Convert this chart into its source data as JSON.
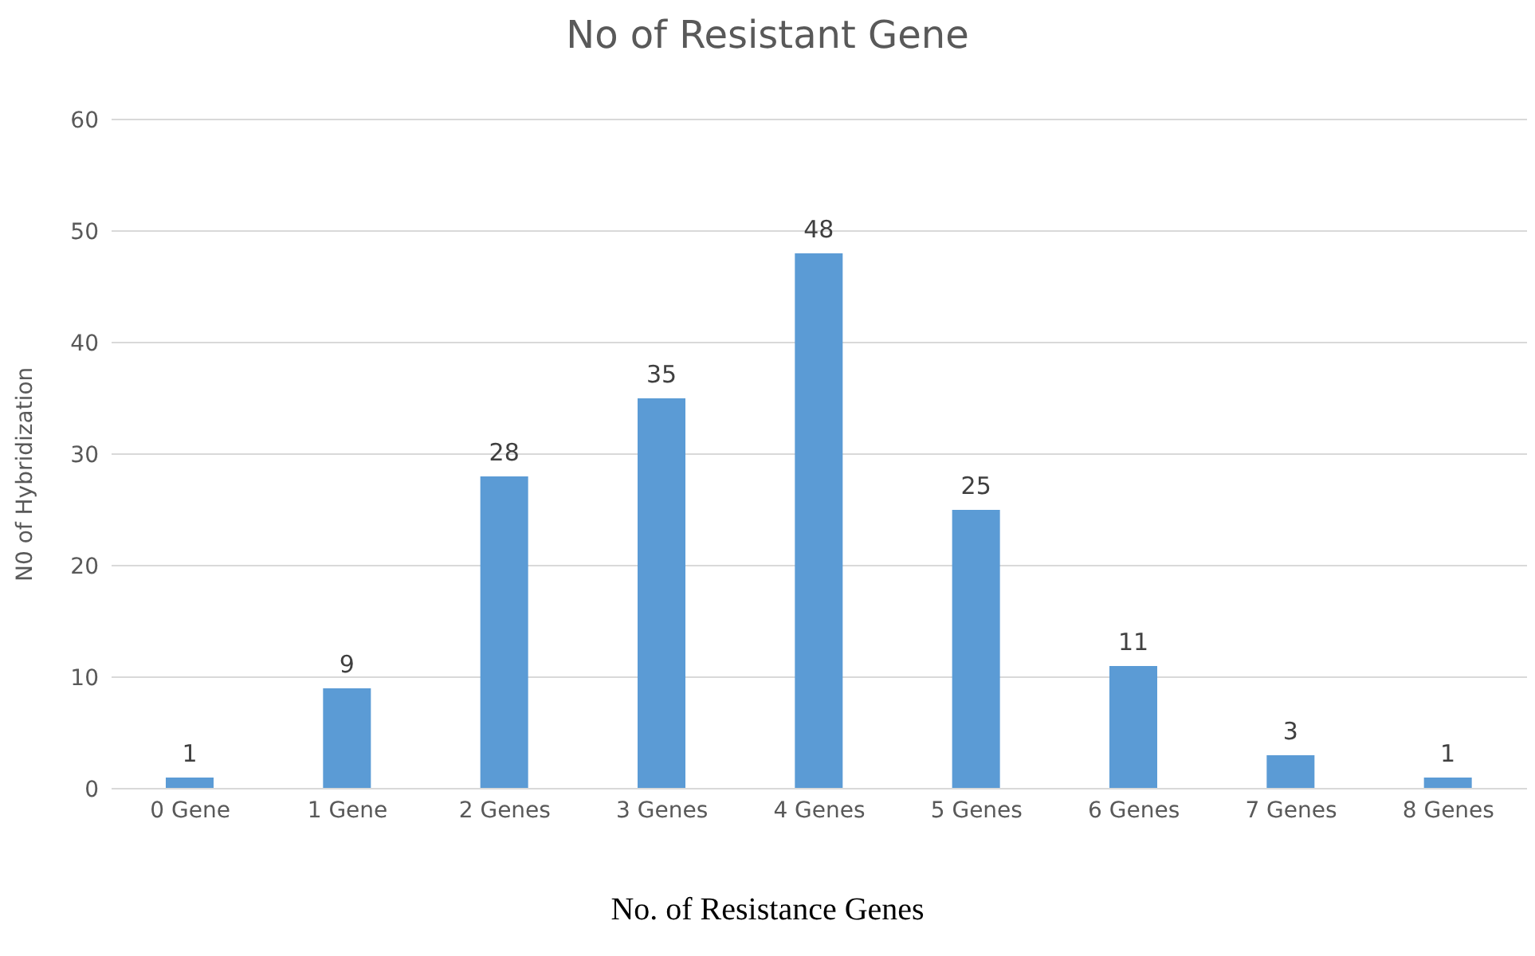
{
  "chart_data": {
    "type": "bar",
    "title": "No of Resistant Gene",
    "xlabel": "No. of Resistance Genes",
    "ylabel": "N0 of Hybridization",
    "categories": [
      "0 Gene",
      "1 Gene",
      "2 Genes",
      "3 Genes",
      "4 Genes",
      "5 Genes",
      "6 Genes",
      "7 Genes",
      "8 Genes"
    ],
    "values": [
      1,
      9,
      28,
      35,
      48,
      25,
      11,
      3,
      1
    ],
    "color": "#5b9bd5",
    "ylim": [
      0,
      60
    ],
    "yticks": [
      0,
      10,
      20,
      30,
      40,
      50,
      60
    ],
    "grid": "y",
    "data_labels": true
  }
}
